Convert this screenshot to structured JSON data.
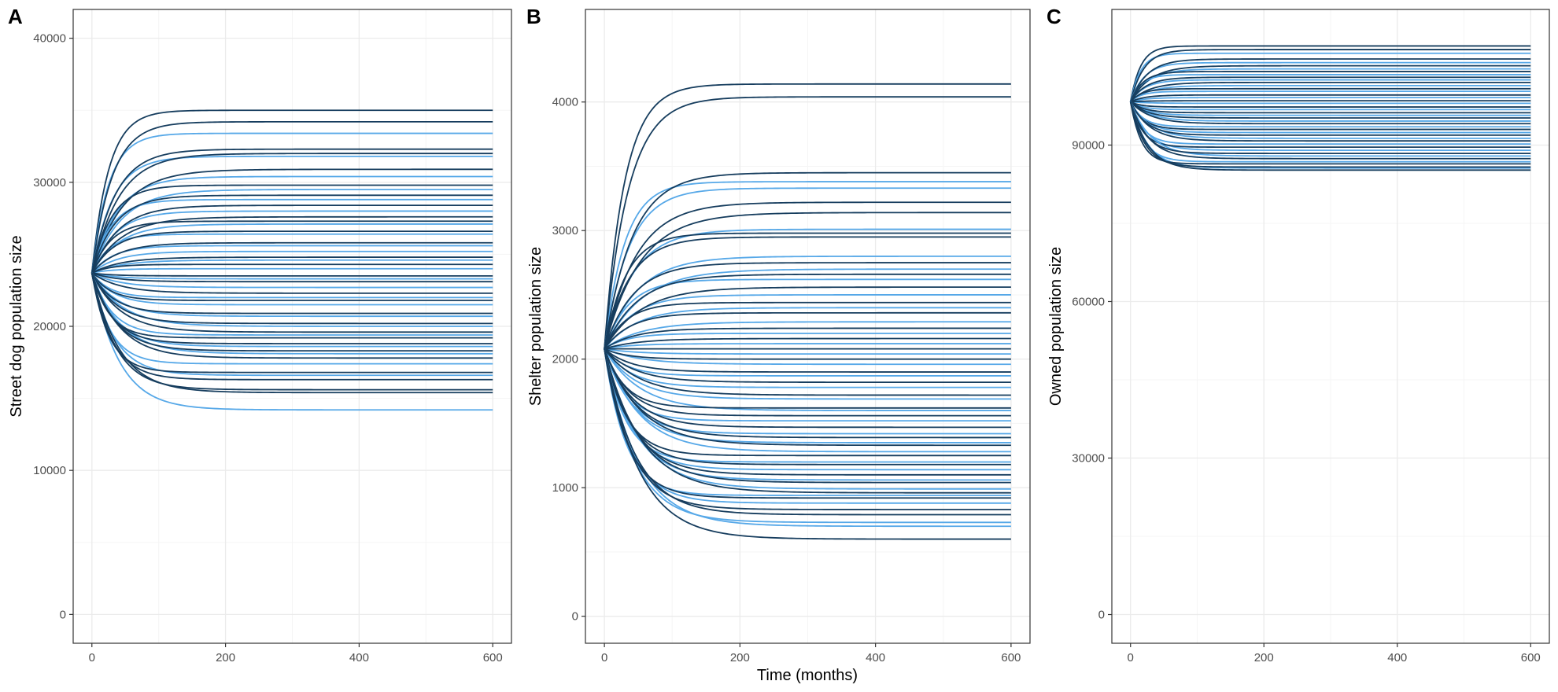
{
  "figure": {
    "xlabel": "Time (months)"
  },
  "colors": {
    "dark": "#163D5E",
    "light": "#56A8E8",
    "grid_major": "#EBEBEB",
    "grid_minor": "#F5F5F5",
    "panel_border": "#333333"
  },
  "chart_data": [
    {
      "id": "A",
      "type": "line",
      "panel_label": "A",
      "xlabel": "",
      "ylabel": "Street dog population size",
      "xlim": [
        -28,
        628
      ],
      "ylim": [
        -2000,
        42000
      ],
      "xticks": [
        0,
        200,
        400,
        600
      ],
      "yticks": [
        0,
        10000,
        20000,
        30000,
        40000
      ],
      "xtick_labels": [
        "0",
        "200",
        "400",
        "600"
      ],
      "ytick_labels": [
        "0",
        "10000",
        "20000",
        "30000",
        "40000"
      ],
      "grid": true,
      "initial_value": 23700,
      "x_range": [
        0,
        600
      ],
      "dark_series_final": [
        35000,
        34200,
        32300,
        32000,
        30900,
        29800,
        29100,
        28400,
        27600,
        27300,
        26600,
        25800,
        24800,
        24300,
        23500,
        23100,
        22300,
        21800,
        20900,
        20200,
        19600,
        19200,
        18800,
        18300,
        17800,
        16800,
        16300,
        15600,
        15400
      ],
      "light_series_final": [
        33400,
        31800,
        30400,
        29500,
        28800,
        28000,
        27100,
        26400,
        25600,
        25200,
        24600,
        24000,
        23300,
        22700,
        22000,
        21500,
        20700,
        20000,
        19400,
        18600,
        18100,
        17400,
        16600,
        14200
      ],
      "settle_months": [
        25,
        45
      ]
    },
    {
      "id": "B",
      "type": "line",
      "panel_label": "B",
      "xlabel": "Time (months)",
      "ylabel": "Shelter population size",
      "xlim": [
        -28,
        628
      ],
      "ylim": [
        -210,
        4720
      ],
      "xticks": [
        0,
        200,
        400,
        600
      ],
      "yticks": [
        0,
        1000,
        2000,
        3000,
        4000
      ],
      "xtick_labels": [
        "0",
        "200",
        "400",
        "600"
      ],
      "ytick_labels": [
        "0",
        "1000",
        "2000",
        "3000",
        "4000"
      ],
      "grid": true,
      "initial_value": 2080,
      "x_range": [
        0,
        600
      ],
      "dark_series_final": [
        4140,
        4040,
        3450,
        3220,
        3140,
        2980,
        2950,
        2750,
        2660,
        2560,
        2440,
        2360,
        2240,
        2160,
        2080,
        2000,
        1900,
        1820,
        1720,
        1620,
        1560,
        1470,
        1390,
        1330,
        1250,
        1180,
        1100,
        1040,
        960,
        920,
        830,
        790,
        600
      ],
      "light_series_final": [
        3380,
        3330,
        3010,
        2800,
        2700,
        2620,
        2500,
        2400,
        2290,
        2200,
        2120,
        2040,
        1960,
        1870,
        1780,
        1690,
        1600,
        1520,
        1420,
        1350,
        1280,
        1200,
        1140,
        1060,
        990,
        940,
        880,
        730,
        700
      ],
      "settle_months": [
        30,
        55
      ]
    },
    {
      "id": "C",
      "type": "line",
      "panel_label": "C",
      "xlabel": "",
      "ylabel": "Owned population size",
      "xlim": [
        -28,
        628
      ],
      "ylim": [
        -5500,
        116000
      ],
      "xticks": [
        0,
        200,
        400,
        600
      ],
      "yticks": [
        0,
        30000,
        60000,
        90000
      ],
      "xtick_labels": [
        "0",
        "200",
        "400",
        "600"
      ],
      "ytick_labels": [
        "0",
        "30000",
        "60000",
        "90000"
      ],
      "grid": true,
      "initial_value": 98300,
      "x_range": [
        0,
        600
      ],
      "dark_series_final": [
        109000,
        108300,
        106500,
        105200,
        104100,
        103000,
        102000,
        100800,
        99600,
        98500,
        97300,
        96200,
        95200,
        94100,
        93000,
        91900,
        90800,
        89600,
        88400,
        87400,
        86400,
        85800,
        85200
      ],
      "light_series_final": [
        107600,
        105800,
        104600,
        103500,
        102500,
        101400,
        100300,
        99100,
        98000,
        96800,
        95700,
        94600,
        93500,
        92400,
        91300,
        90200,
        89000,
        87900,
        86800,
        85600
      ],
      "settle_months": [
        15,
        30
      ]
    }
  ]
}
